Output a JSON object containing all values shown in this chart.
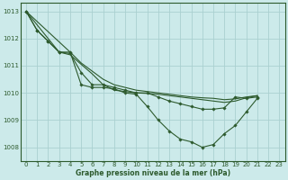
{
  "title": "Graphe pression niveau de la mer (hPa)",
  "bg_color": "#cceaea",
  "grid_color": "#aad0d0",
  "line_color": "#2d5a2d",
  "xlim": [
    -0.5,
    23.5
  ],
  "ylim": [
    1007.5,
    1013.3
  ],
  "yticks": [
    1008,
    1009,
    1010,
    1011,
    1012,
    1013
  ],
  "xticks": [
    0,
    1,
    2,
    3,
    4,
    5,
    6,
    7,
    8,
    9,
    10,
    11,
    12,
    13,
    14,
    15,
    16,
    17,
    18,
    19,
    20,
    21,
    22,
    23
  ],
  "series": [
    {
      "x": [
        0,
        1,
        2,
        3,
        4,
        5,
        6,
        7,
        8,
        9,
        10,
        11,
        12,
        13,
        14,
        15,
        16,
        17,
        18,
        19,
        20,
        21
      ],
      "y": [
        1013.0,
        1012.3,
        1011.9,
        1011.5,
        1011.5,
        1010.3,
        1010.2,
        1010.2,
        1010.15,
        1010.0,
        1009.95,
        1009.5,
        1009.0,
        1008.6,
        1008.3,
        1008.2,
        1008.0,
        1008.1,
        1008.5,
        1008.8,
        1009.3,
        1009.8
      ],
      "marker": true
    },
    {
      "x": [
        0,
        1,
        2,
        3,
        4,
        5,
        6,
        7,
        8,
        9,
        10,
        11,
        12,
        13,
        14,
        15,
        16,
        17,
        18,
        19,
        20,
        21
      ],
      "y": [
        1013.0,
        1012.3,
        1011.9,
        1011.5,
        1011.45,
        1010.75,
        1010.3,
        1010.3,
        1010.2,
        1010.1,
        1010.0,
        1010.0,
        1009.85,
        1009.7,
        1009.6,
        1009.5,
        1009.4,
        1009.4,
        1009.45,
        1009.85,
        1009.8,
        1009.85
      ],
      "marker": true
    },
    {
      "x": [
        0,
        3,
        4,
        5,
        6,
        7,
        8,
        9,
        10,
        11,
        12,
        13,
        14,
        15,
        16,
        17,
        18,
        19,
        20,
        21
      ],
      "y": [
        1013.0,
        1011.5,
        1011.4,
        1011.05,
        1010.7,
        1010.3,
        1010.1,
        1010.05,
        1010.0,
        1009.98,
        1009.95,
        1009.9,
        1009.85,
        1009.8,
        1009.75,
        1009.7,
        1009.65,
        1009.7,
        1009.82,
        1009.9
      ],
      "marker": false
    },
    {
      "x": [
        0,
        4,
        5,
        6,
        7,
        8,
        9,
        10,
        11,
        12,
        13,
        14,
        15,
        16,
        17,
        18,
        19,
        20,
        21
      ],
      "y": [
        1013.0,
        1011.5,
        1011.1,
        1010.8,
        1010.5,
        1010.3,
        1010.2,
        1010.1,
        1010.05,
        1010.0,
        1009.95,
        1009.9,
        1009.85,
        1009.82,
        1009.8,
        1009.75,
        1009.78,
        1009.85,
        1009.9
      ],
      "marker": false
    }
  ]
}
